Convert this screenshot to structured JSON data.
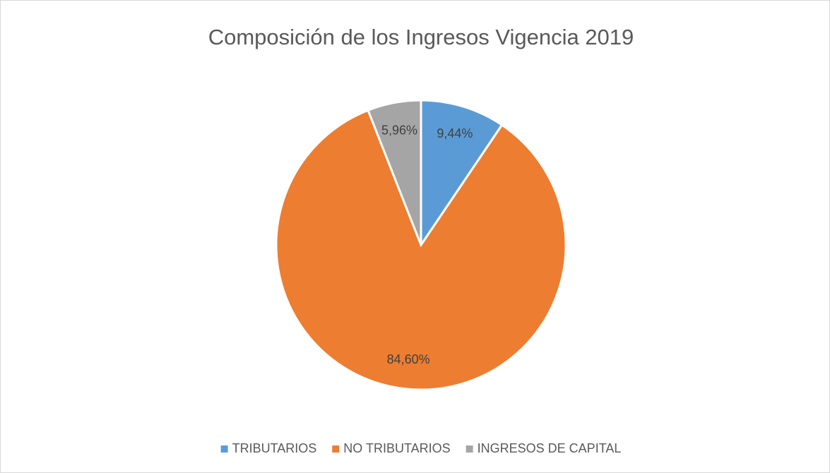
{
  "chart_data": {
    "type": "pie",
    "title": "Composición de los Ingresos Vigencia 2019",
    "categories": [
      "TRIBUTARIOS",
      "NO TRIBUTARIOS",
      "INGRESOS DE CAPITAL"
    ],
    "values": [
      9.44,
      84.6,
      5.96
    ],
    "value_labels": [
      "9,44%",
      "84,60%",
      "5,96%"
    ],
    "colors": [
      "#5b9bd5",
      "#ed7d31",
      "#a5a5a5"
    ],
    "legend": "bottom"
  }
}
